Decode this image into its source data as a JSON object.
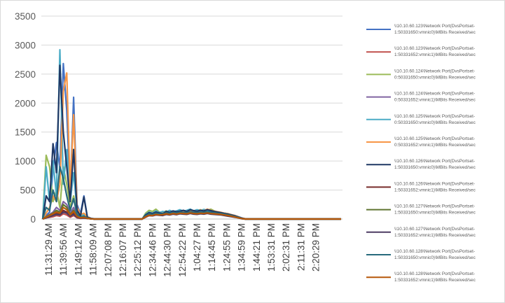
{
  "chart_data": {
    "type": "line",
    "title": "",
    "xlabel": "",
    "ylabel": "",
    "ylim": [
      0,
      3500
    ],
    "yticks": [
      0,
      500,
      1000,
      1500,
      2000,
      2500,
      3000,
      3500
    ],
    "gridlines": "horizontal",
    "legend_position": "right",
    "x_tick_labels": [
      "11:31:29 AM",
      "11:39:56 AM",
      "11:49:12 AM",
      "11:58:09 AM",
      "12:07:08 PM",
      "12:16:07 PM",
      "12:25:12 PM",
      "12:34:46 PM",
      "12:44:30 PM",
      "12:54:22 PM",
      "1:04:27 PM",
      "1:14:45 PM",
      "1:24:55 PM",
      "1:34:59 PM",
      "1:44:21 PM",
      "1:53:31 PM",
      "2:02:31 PM",
      "2:11:31 PM",
      "2:20:29 PM"
    ],
    "series": [
      {
        "name": "\\\\10.10.60.123\\Network Port(DvsPortset-1:50331650:vmnic0)\\MBits Received/sec",
        "color": "#4472c4",
        "values": [
          0,
          60,
          120,
          860,
          1320,
          880,
          2680,
          1870,
          420,
          2100,
          250,
          90,
          400,
          40,
          15,
          5,
          0,
          0,
          0,
          0,
          0,
          0,
          0,
          0,
          0,
          0,
          0,
          0,
          0,
          0,
          40,
          70,
          60,
          80,
          95,
          70,
          105,
          90,
          115,
          100,
          120,
          125,
          110,
          130,
          140,
          125,
          150,
          135,
          145,
          140,
          130,
          120,
          110,
          100,
          90,
          75,
          60,
          40,
          20,
          5,
          0,
          0,
          0,
          0,
          0,
          0,
          0,
          0,
          0,
          0,
          0,
          0,
          0,
          0,
          0,
          0,
          0,
          0,
          0,
          0,
          0,
          0,
          0,
          0,
          0,
          0,
          0,
          0
        ]
      },
      {
        "name": "\\\\10.10.60.123\\Network Port(DvsPortset-1:50331652:vmnic1)\\MBits Received/sec",
        "color": "#c0504d",
        "values": [
          0,
          20,
          30,
          40,
          60,
          50,
          90,
          70,
          30,
          60,
          20,
          10,
          15,
          10,
          5,
          0,
          0,
          0,
          0,
          0,
          0,
          0,
          0,
          0,
          0,
          0,
          0,
          0,
          0,
          0,
          30,
          60,
          55,
          70,
          80,
          65,
          90,
          85,
          95,
          90,
          100,
          110,
          95,
          105,
          115,
          100,
          110,
          105,
          115,
          110,
          105,
          100,
          95,
          85,
          75,
          65,
          50,
          35,
          15,
          5,
          0,
          0,
          0,
          0,
          0,
          0,
          0,
          0,
          0,
          0,
          0,
          0,
          0,
          0,
          0,
          0,
          0,
          0,
          0,
          0,
          0,
          0,
          0,
          0,
          0,
          0,
          0,
          0
        ]
      },
      {
        "name": "\\\\10.10.60.124\\Network Port(DvsPortset-0:50331650:vmnic0)\\MBits Received/sec",
        "color": "#9bbb59",
        "values": [
          0,
          1100,
          900,
          300,
          500,
          200,
          900,
          600,
          200,
          400,
          100,
          40,
          60,
          20,
          5,
          0,
          0,
          0,
          0,
          0,
          0,
          0,
          0,
          0,
          0,
          0,
          0,
          0,
          0,
          0,
          100,
          150,
          130,
          170,
          120,
          110,
          140,
          100,
          130,
          120,
          140,
          110,
          130,
          150,
          120,
          140,
          160,
          130,
          150,
          170,
          140,
          120,
          110,
          100,
          90,
          70,
          50,
          30,
          10,
          0,
          0,
          0,
          0,
          0,
          0,
          0,
          0,
          0,
          0,
          0,
          0,
          0,
          0,
          0,
          0,
          0,
          0,
          0,
          0,
          0,
          0,
          0,
          0,
          0,
          0,
          0,
          0,
          0
        ]
      },
      {
        "name": "\\\\10.10.60.124\\Network Port(DvsPortset-0:50331652:vmnic1)\\MBits Received/sec",
        "color": "#8064a2",
        "values": [
          0,
          50,
          80,
          120,
          200,
          150,
          300,
          250,
          100,
          200,
          60,
          30,
          40,
          15,
          5,
          0,
          0,
          0,
          0,
          0,
          0,
          0,
          0,
          0,
          0,
          0,
          0,
          0,
          0,
          0,
          40,
          80,
          70,
          90,
          85,
          75,
          100,
          90,
          110,
          95,
          105,
          115,
          100,
          120,
          110,
          100,
          115,
          105,
          120,
          110,
          100,
          95,
          90,
          80,
          70,
          60,
          45,
          30,
          10,
          0,
          0,
          0,
          0,
          0,
          0,
          0,
          0,
          0,
          0,
          0,
          0,
          0,
          0,
          0,
          0,
          0,
          0,
          0,
          0,
          0,
          0,
          0,
          0,
          0,
          0,
          0,
          0,
          0
        ]
      },
      {
        "name": "\\\\10.10.60.125\\Network Port(DvsPortset-0:50331650:vmnic0)\\MBits Received/sec",
        "color": "#4bacc6",
        "values": [
          0,
          900,
          300,
          1000,
          400,
          2920,
          600,
          1200,
          300,
          800,
          150,
          60,
          80,
          30,
          10,
          0,
          0,
          0,
          0,
          0,
          0,
          0,
          0,
          0,
          0,
          0,
          0,
          0,
          0,
          0,
          80,
          120,
          100,
          140,
          110,
          130,
          120,
          150,
          125,
          140,
          160,
          135,
          150,
          170,
          140,
          160,
          145,
          165,
          150,
          140,
          130,
          120,
          110,
          100,
          85,
          70,
          55,
          35,
          15,
          0,
          0,
          0,
          0,
          0,
          0,
          0,
          0,
          0,
          0,
          0,
          0,
          0,
          0,
          0,
          0,
          0,
          0,
          0,
          0,
          0,
          0,
          0,
          0,
          0,
          0,
          0,
          0,
          0
        ]
      },
      {
        "name": "\\\\10.10.60.125\\Network Port(DvsPortset-0:50331652:vmnic1)\\MBits Received/sec",
        "color": "#f79646",
        "values": [
          0,
          100,
          200,
          400,
          300,
          600,
          2200,
          2520,
          500,
          1800,
          200,
          80,
          100,
          40,
          10,
          0,
          0,
          0,
          0,
          0,
          0,
          0,
          0,
          0,
          0,
          0,
          0,
          0,
          0,
          0,
          60,
          100,
          90,
          110,
          100,
          95,
          120,
          110,
          130,
          115,
          125,
          140,
          120,
          135,
          145,
          130,
          155,
          140,
          170,
          150,
          135,
          125,
          115,
          100,
          90,
          75,
          60,
          40,
          15,
          5,
          0,
          0,
          0,
          0,
          0,
          0,
          0,
          0,
          0,
          0,
          0,
          0,
          0,
          0,
          0,
          0,
          0,
          0,
          0,
          0,
          0,
          0,
          0,
          0,
          0,
          0,
          0,
          0
        ]
      },
      {
        "name": "\\\\10.10.60.126\\Network Port(DvsPortset-1:50331650:vmnic0)\\MBits Received/sec",
        "color": "#1f3864",
        "values": [
          0,
          400,
          300,
          1300,
          800,
          2650,
          1500,
          900,
          300,
          1200,
          150,
          50,
          380,
          30,
          10,
          0,
          0,
          0,
          0,
          0,
          0,
          0,
          0,
          0,
          0,
          0,
          0,
          0,
          0,
          0,
          70,
          110,
          95,
          120,
          105,
          90,
          130,
          115,
          140,
          125,
          135,
          150,
          130,
          160,
          145,
          135,
          150,
          140,
          160,
          145,
          130,
          120,
          110,
          95,
          85,
          70,
          55,
          35,
          15,
          0,
          0,
          0,
          0,
          0,
          0,
          0,
          0,
          0,
          0,
          0,
          0,
          0,
          0,
          0,
          0,
          0,
          0,
          0,
          0,
          0,
          0,
          0,
          0,
          0,
          0,
          0,
          0,
          0
        ]
      },
      {
        "name": "\\\\10.10.60.126\\Network Port(DvsPortset-1:50331652:vmnic1)\\MBits Received/sec",
        "color": "#772c2a",
        "values": [
          0,
          30,
          50,
          80,
          100,
          90,
          150,
          120,
          60,
          100,
          40,
          20,
          25,
          10,
          5,
          0,
          0,
          0,
          0,
          0,
          0,
          0,
          0,
          0,
          0,
          0,
          0,
          0,
          0,
          0,
          50,
          70,
          65,
          85,
          75,
          80,
          95,
          85,
          100,
          90,
          105,
          100,
          95,
          110,
          100,
          95,
          105,
          100,
          110,
          100,
          95,
          90,
          85,
          75,
          65,
          55,
          40,
          25,
          10,
          0,
          0,
          0,
          0,
          0,
          0,
          0,
          0,
          0,
          0,
          0,
          0,
          0,
          0,
          0,
          0,
          0,
          0,
          0,
          0,
          0,
          0,
          0,
          0,
          0,
          0,
          0,
          0,
          0
        ]
      },
      {
        "name": "\\\\10.10.60.127\\Network Port(DvsPortset-1:50331650:vmnic0)\\MBits Received/sec",
        "color": "#5f7530",
        "values": [
          0,
          40,
          70,
          100,
          150,
          120,
          250,
          200,
          80,
          150,
          50,
          25,
          35,
          15,
          5,
          0,
          0,
          0,
          0,
          0,
          0,
          0,
          0,
          0,
          0,
          0,
          0,
          0,
          0,
          0,
          45,
          75,
          70,
          90,
          80,
          85,
          100,
          90,
          105,
          95,
          110,
          105,
          100,
          115,
          105,
          100,
          110,
          105,
          115,
          105,
          100,
          95,
          85,
          75,
          65,
          55,
          40,
          25,
          10,
          0,
          0,
          0,
          0,
          0,
          0,
          0,
          0,
          0,
          0,
          0,
          0,
          0,
          0,
          0,
          0,
          0,
          0,
          0,
          0,
          0,
          0,
          0,
          0,
          0,
          0,
          0,
          0,
          0
        ]
      },
      {
        "name": "\\\\10.10.60.127\\Network Port(DvsPortset-1:50331652:vmnic1)\\MBits Received/sec",
        "color": "#4d3b62",
        "values": [
          0,
          20,
          40,
          60,
          80,
          70,
          120,
          100,
          50,
          80,
          30,
          15,
          20,
          10,
          5,
          0,
          0,
          0,
          0,
          0,
          0,
          0,
          0,
          0,
          0,
          0,
          0,
          0,
          0,
          0,
          35,
          60,
          55,
          70,
          65,
          60,
          80,
          70,
          85,
          75,
          90,
          85,
          80,
          95,
          85,
          80,
          90,
          85,
          95,
          85,
          80,
          75,
          70,
          60,
          50,
          40,
          30,
          20,
          5,
          0,
          0,
          0,
          0,
          0,
          0,
          0,
          0,
          0,
          0,
          0,
          0,
          0,
          0,
          0,
          0,
          0,
          0,
          0,
          0,
          0,
          0,
          0,
          0,
          0,
          0,
          0,
          0,
          0
        ]
      },
      {
        "name": "\\\\10.10.60.128\\Network Port(DvsPortset-1:50331650:vmnic0)\\MBits Received/sec",
        "color": "#276a7c",
        "values": [
          0,
          200,
          150,
          500,
          300,
          900,
          700,
          400,
          150,
          350,
          80,
          30,
          50,
          20,
          5,
          0,
          0,
          0,
          0,
          0,
          0,
          0,
          0,
          0,
          0,
          0,
          0,
          0,
          0,
          0,
          55,
          90,
          80,
          100,
          90,
          85,
          110,
          100,
          115,
          105,
          120,
          115,
          110,
          125,
          115,
          110,
          120,
          115,
          125,
          115,
          110,
          100,
          95,
          85,
          75,
          60,
          45,
          30,
          10,
          0,
          0,
          0,
          0,
          0,
          0,
          0,
          0,
          0,
          0,
          0,
          0,
          0,
          0,
          0,
          0,
          0,
          0,
          0,
          0,
          0,
          0,
          0,
          0,
          0,
          0,
          0,
          0,
          0
        ]
      },
      {
        "name": "\\\\10.10.60.128\\Network Port(DvsPortset-1:50331652:vmnic1)\\MBits Received/sec",
        "color": "#b65708",
        "values": [
          0,
          30,
          60,
          90,
          120,
          100,
          200,
          160,
          70,
          130,
          45,
          20,
          30,
          12,
          5,
          0,
          0,
          0,
          0,
          0,
          0,
          0,
          0,
          0,
          0,
          0,
          0,
          0,
          0,
          0,
          40,
          65,
          60,
          80,
          70,
          75,
          90,
          80,
          95,
          85,
          100,
          95,
          90,
          105,
          95,
          90,
          100,
          95,
          105,
          95,
          90,
          85,
          80,
          70,
          60,
          50,
          35,
          20,
          8,
          0,
          0,
          0,
          0,
          0,
          0,
          0,
          0,
          0,
          0,
          0,
          0,
          0,
          0,
          0,
          0,
          0,
          0,
          0,
          0,
          0,
          0,
          0,
          0,
          0,
          0,
          0,
          0,
          0
        ]
      }
    ]
  }
}
